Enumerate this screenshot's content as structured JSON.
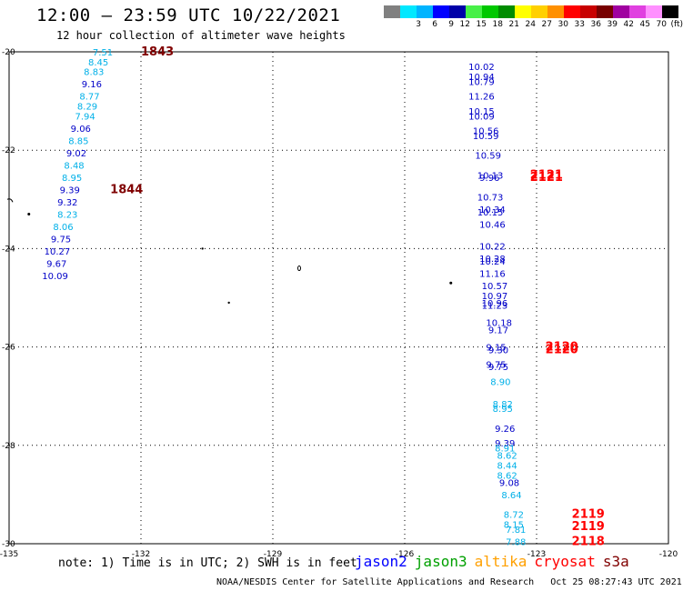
{
  "header": {
    "title": "12:00 — 23:59 UTC 10/22/2021",
    "subtitle": "12 hour collection of altimeter wave heights"
  },
  "legend": {
    "swatches": [
      {
        "color": "#808080",
        "label": ""
      },
      {
        "color": "#00e8ff",
        "label": "3"
      },
      {
        "color": "#00b4ff",
        "label": "6"
      },
      {
        "color": "#0000ff",
        "label": "9"
      },
      {
        "color": "#0000a8",
        "label": "12"
      },
      {
        "color": "#48f048",
        "label": "15"
      },
      {
        "color": "#00c800",
        "label": "18"
      },
      {
        "color": "#008c00",
        "label": "21"
      },
      {
        "color": "#ffff00",
        "label": "24"
      },
      {
        "color": "#ffd000",
        "label": "27"
      },
      {
        "color": "#ff9000",
        "label": "30"
      },
      {
        "color": "#ff0000",
        "label": "33"
      },
      {
        "color": "#c80000",
        "label": "36"
      },
      {
        "color": "#780000",
        "label": "39"
      },
      {
        "color": "#a000a0",
        "label": "42"
      },
      {
        "color": "#e040e0",
        "label": "45"
      },
      {
        "color": "#ff90ff",
        "label": "70"
      },
      {
        "color": "#000000",
        "label": "(ft)"
      }
    ]
  },
  "map": {
    "lon_ticks": [
      "-135",
      "-132",
      "-129",
      "-126",
      "-123",
      "-120"
    ],
    "lat_ticks": [
      "-20",
      "-22",
      "-24",
      "-26",
      "-28",
      "-30"
    ],
    "colors": {
      "cyan": "#00b0e8",
      "blue": "#0000c8",
      "red": "#ff0000",
      "darkred": "#800000"
    },
    "track_left": [
      {
        "text": "7.51",
        "c": "cyan",
        "lon": -133.1,
        "lat": -20.0
      },
      {
        "text": "8.45",
        "c": "cyan",
        "lon": -133.2,
        "lat": -20.2
      },
      {
        "text": "8.83",
        "c": "cyan",
        "lon": -133.3,
        "lat": -20.4
      },
      {
        "text": "9.16",
        "c": "blue",
        "lon": -133.35,
        "lat": -20.65
      },
      {
        "text": "8.77",
        "c": "cyan",
        "lon": -133.4,
        "lat": -20.9
      },
      {
        "text": "8.29",
        "c": "cyan",
        "lon": -133.45,
        "lat": -21.1
      },
      {
        "text": "7.94",
        "c": "cyan",
        "lon": -133.5,
        "lat": -21.3
      },
      {
        "text": "9.06",
        "c": "blue",
        "lon": -133.6,
        "lat": -21.55
      },
      {
        "text": "8.85",
        "c": "cyan",
        "lon": -133.65,
        "lat": -21.8
      },
      {
        "text": "9.02",
        "c": "blue",
        "lon": -133.7,
        "lat": -22.05
      },
      {
        "text": "8.48",
        "c": "cyan",
        "lon": -133.75,
        "lat": -22.3
      },
      {
        "text": "8.95",
        "c": "cyan",
        "lon": -133.8,
        "lat": -22.55
      },
      {
        "text": "9.39",
        "c": "blue",
        "lon": -133.85,
        "lat": -22.8
      },
      {
        "text": "9.32",
        "c": "blue",
        "lon": -133.9,
        "lat": -23.05
      },
      {
        "text": "8.23",
        "c": "cyan",
        "lon": -133.9,
        "lat": -23.3
      },
      {
        "text": "8.06",
        "c": "cyan",
        "lon": -134.0,
        "lat": -23.55
      },
      {
        "text": "9.75",
        "c": "blue",
        "lon": -134.05,
        "lat": -23.8
      },
      {
        "text": "10.27",
        "c": "blue",
        "lon": -134.2,
        "lat": -24.05
      },
      {
        "text": "9.67",
        "c": "blue",
        "lon": -134.15,
        "lat": -24.3
      },
      {
        "text": "10.09",
        "c": "blue",
        "lon": -134.25,
        "lat": -24.55
      }
    ],
    "track_right": [
      {
        "text": "10.02",
        "c": "blue",
        "lon": -124.55,
        "lat": -20.3
      },
      {
        "text": "10.94",
        "c": "blue",
        "lon": -124.55,
        "lat": -20.5
      },
      {
        "text": "10.79",
        "c": "blue",
        "lon": -124.55,
        "lat": -20.6
      },
      {
        "text": "11.26",
        "c": "blue",
        "lon": -124.55,
        "lat": -20.9
      },
      {
        "text": "10.15",
        "c": "blue",
        "lon": -124.55,
        "lat": -21.2
      },
      {
        "text": "10.09",
        "c": "blue",
        "lon": -124.55,
        "lat": -21.3
      },
      {
        "text": "10.56",
        "c": "blue",
        "lon": -124.45,
        "lat": -21.6
      },
      {
        "text": "10.59",
        "c": "blue",
        "lon": -124.45,
        "lat": -21.7
      },
      {
        "text": "10.59",
        "c": "blue",
        "lon": -124.4,
        "lat": -22.1
      },
      {
        "text": "10.13",
        "c": "blue",
        "lon": -124.35,
        "lat": -22.5
      },
      {
        "text": "9.96",
        "c": "blue",
        "lon": -124.3,
        "lat": -22.55
      },
      {
        "text": "10.73",
        "c": "blue",
        "lon": -124.35,
        "lat": -22.95
      },
      {
        "text": "10.34",
        "c": "blue",
        "lon": -124.3,
        "lat": -23.2
      },
      {
        "text": "10.15",
        "c": "blue",
        "lon": -124.35,
        "lat": -23.25
      },
      {
        "text": "10.46",
        "c": "blue",
        "lon": -124.3,
        "lat": -23.5
      },
      {
        "text": "10.22",
        "c": "blue",
        "lon": -124.3,
        "lat": -23.95
      },
      {
        "text": "10.28",
        "c": "blue",
        "lon": -124.3,
        "lat": -24.2
      },
      {
        "text": "10.24",
        "c": "blue",
        "lon": -124.3,
        "lat": -24.25
      },
      {
        "text": "11.16",
        "c": "blue",
        "lon": -124.3,
        "lat": -24.5
      },
      {
        "text": "10.57",
        "c": "blue",
        "lon": -124.25,
        "lat": -24.75
      },
      {
        "text": "10.97",
        "c": "blue",
        "lon": -124.25,
        "lat": -24.95
      },
      {
        "text": "10.96",
        "c": "blue",
        "lon": -124.25,
        "lat": -25.1
      },
      {
        "text": "11.23",
        "c": "blue",
        "lon": -124.25,
        "lat": -25.15
      },
      {
        "text": "10.18",
        "c": "blue",
        "lon": -124.15,
        "lat": -25.5
      },
      {
        "text": "9.17",
        "c": "blue",
        "lon": -124.1,
        "lat": -25.65
      },
      {
        "text": "9.15",
        "c": "blue",
        "lon": -124.15,
        "lat": -26.0
      },
      {
        "text": "9.30",
        "c": "blue",
        "lon": -124.1,
        "lat": -26.05
      },
      {
        "text": "9.75",
        "c": "blue",
        "lon": -124.15,
        "lat": -26.35
      },
      {
        "text": "9.75",
        "c": "blue",
        "lon": -124.1,
        "lat": -26.4
      },
      {
        "text": "8.90",
        "c": "cyan",
        "lon": -124.05,
        "lat": -26.7
      },
      {
        "text": "8.82",
        "c": "cyan",
        "lon": -124.0,
        "lat": -27.15
      },
      {
        "text": "8.95",
        "c": "cyan",
        "lon": -124.0,
        "lat": -27.25
      },
      {
        "text": "9.26",
        "c": "blue",
        "lon": -123.95,
        "lat": -27.65
      },
      {
        "text": "9.39",
        "c": "blue",
        "lon": -123.95,
        "lat": -27.95
      },
      {
        "text": "8.91",
        "c": "cyan",
        "lon": -123.95,
        "lat": -28.05
      },
      {
        "text": "8.62",
        "c": "cyan",
        "lon": -123.9,
        "lat": -28.2
      },
      {
        "text": "8.44",
        "c": "cyan",
        "lon": -123.9,
        "lat": -28.4
      },
      {
        "text": "8.62",
        "c": "cyan",
        "lon": -123.9,
        "lat": -28.6
      },
      {
        "text": "9.08",
        "c": "blue",
        "lon": -123.85,
        "lat": -28.75
      },
      {
        "text": "8.64",
        "c": "cyan",
        "lon": -123.8,
        "lat": -29.0
      },
      {
        "text": "8.72",
        "c": "cyan",
        "lon": -123.75,
        "lat": -29.4
      },
      {
        "text": "8.15",
        "c": "cyan",
        "lon": -123.75,
        "lat": -29.6
      },
      {
        "text": "7.81",
        "c": "cyan",
        "lon": -123.7,
        "lat": -29.7
      },
      {
        "text": "7.88",
        "c": "cyan",
        "lon": -123.7,
        "lat": -29.95
      }
    ],
    "time_labels": [
      {
        "text": "1843",
        "c": "darkred",
        "lon": -132.0,
        "lat": -20.0
      },
      {
        "text": "1844",
        "c": "darkred",
        "lon": -132.7,
        "lat": -22.8
      },
      {
        "text": "2121",
        "c": "red",
        "lon": -123.15,
        "lat": -22.5
      },
      {
        "text": "2121",
        "c": "red",
        "lon": -123.15,
        "lat": -22.55
      },
      {
        "text": "2120",
        "c": "red",
        "lon": -122.8,
        "lat": -26.0
      },
      {
        "text": "2120",
        "c": "red",
        "lon": -122.8,
        "lat": -26.05
      },
      {
        "text": "2119",
        "c": "red",
        "lon": -122.2,
        "lat": -29.4
      },
      {
        "text": "2119",
        "c": "red",
        "lon": -122.2,
        "lat": -29.65
      },
      {
        "text": "2118",
        "c": "red",
        "lon": -122.2,
        "lat": -29.95
      }
    ]
  },
  "footer": {
    "note": "note: 1) Time is in UTC; 2) SWH is in feet",
    "satellites": [
      {
        "name": "jason2",
        "color": "#0000ff"
      },
      {
        "name": "jason3",
        "color": "#00a000"
      },
      {
        "name": "altika",
        "color": "#ffa000"
      },
      {
        "name": "cryosat",
        "color": "#ff0000"
      },
      {
        "name": "s3a",
        "color": "#800000"
      }
    ],
    "credit": "NOAA/NESDIS Center for Satellite Applications and Research",
    "timestamp": "Oct 25 08:27:43 UTC 2021"
  }
}
